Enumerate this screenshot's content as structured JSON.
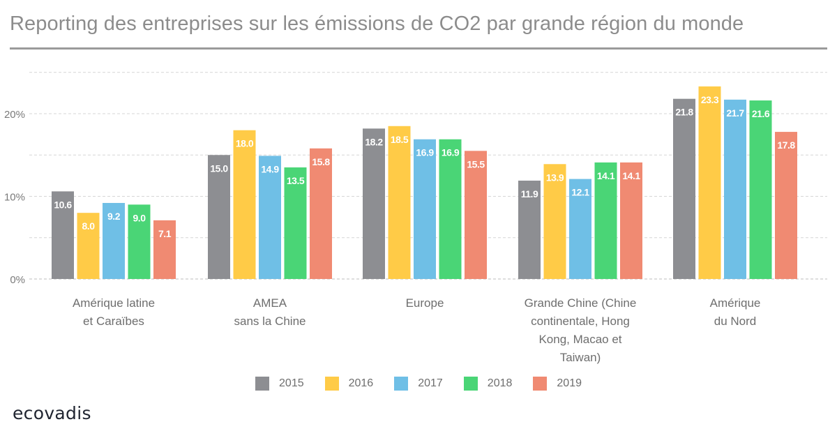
{
  "title": "Reporting des entreprises sur les émissions de CO2 par grande région du monde",
  "logo": "ecovadis",
  "chart_data": {
    "type": "bar",
    "categories": [
      [
        "Amérique latine",
        "et Caraïbes"
      ],
      [
        "AMEA",
        "sans la Chine"
      ],
      [
        "Europe"
      ],
      [
        "Grande Chine (Chine",
        "continentale, Hong",
        "Kong, Macao et",
        "Taiwan)"
      ],
      [
        "Amérique",
        "du Nord"
      ]
    ],
    "series": [
      {
        "name": "2015",
        "color": "#8d8e92",
        "values": [
          10.6,
          15.0,
          18.2,
          11.9,
          21.8
        ],
        "labels": [
          "10.6",
          "15.0",
          "18.2",
          "11.9",
          "21.8"
        ]
      },
      {
        "name": "2016",
        "color": "#ffcb47",
        "values": [
          8.0,
          18.0,
          18.5,
          13.9,
          23.3
        ],
        "labels": [
          "8.0",
          "18.0",
          "18.5",
          "13.9",
          "23.3"
        ]
      },
      {
        "name": "2017",
        "color": "#6fbfe6",
        "values": [
          9.2,
          14.9,
          16.9,
          12.1,
          21.7
        ],
        "labels": [
          "9.2",
          "14.9",
          "16.9",
          "12.1",
          "21.7"
        ]
      },
      {
        "name": "2018",
        "color": "#4ad576",
        "values": [
          9.0,
          13.5,
          16.9,
          14.1,
          21.6
        ],
        "labels": [
          "9.0",
          "13.5",
          "16.9",
          "14.1",
          "21.6"
        ]
      },
      {
        "name": "2019",
        "color": "#f08a72",
        "values": [
          7.1,
          15.8,
          15.5,
          14.1,
          17.8
        ],
        "labels": [
          "7.1",
          "15.8",
          "15.5",
          "14.1",
          "17.8"
        ]
      }
    ],
    "yticks": [
      "0%",
      "10%",
      "20%"
    ],
    "ytick_values": [
      0,
      10,
      20
    ],
    "ylim": [
      0,
      25
    ],
    "grid": true,
    "legend_position": "bottom-center"
  }
}
